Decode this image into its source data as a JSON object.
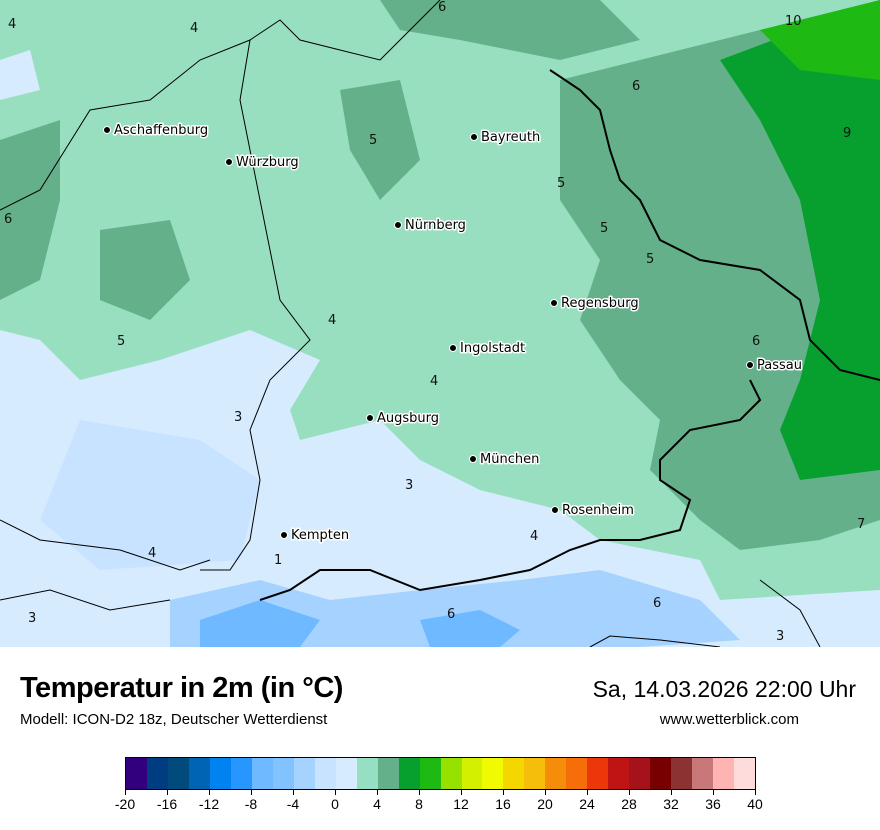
{
  "header": {
    "title": "Temperatur in 2m (in °C)",
    "subtitle": "Modell: ICON-D2 18z, Deutscher Wetterdienst",
    "datetime": "Sa, 14.03.2026 22:00 Uhr",
    "website": "www.wetterblick.com"
  },
  "map": {
    "cities": [
      {
        "name": "Aschaffenburg"
      },
      {
        "name": "Würzburg"
      },
      {
        "name": "Bayreuth"
      },
      {
        "name": "Nürnberg"
      },
      {
        "name": "Regensburg"
      },
      {
        "name": "Ingolstadt"
      },
      {
        "name": "Passau"
      },
      {
        "name": "Augsburg"
      },
      {
        "name": "München"
      },
      {
        "name": "Rosenheim"
      },
      {
        "name": "Kempten"
      }
    ],
    "contour_labels": [
      "4",
      "4",
      "6",
      "10",
      "6",
      "9",
      "5",
      "5",
      "5",
      "6",
      "5",
      "4",
      "6",
      "5",
      "4",
      "3",
      "3",
      "4",
      "1",
      "4",
      "3",
      "6",
      "6",
      "7",
      "3"
    ]
  },
  "legend": {
    "ticks": [
      "-20",
      "-16",
      "-12",
      "-8",
      "-4",
      "0",
      "4",
      "8",
      "12",
      "16",
      "20",
      "24",
      "28",
      "32",
      "36",
      "40"
    ],
    "colors": [
      "#32007e",
      "#003c82",
      "#004a7c",
      "#0064b4",
      "#0082f0",
      "#2896ff",
      "#6eb9ff",
      "#82c3ff",
      "#a5d2ff",
      "#c8e3ff",
      "#d7ebff",
      "#96dfc2",
      "#64b08b",
      "#07a02f",
      "#1fb913",
      "#96e100",
      "#d2f000",
      "#f0fa00",
      "#f5d700",
      "#f5be0a",
      "#f58c0a",
      "#f56e0a",
      "#eb370a",
      "#be1414",
      "#a5121a",
      "#780000",
      "#8c3232",
      "#c87878",
      "#ffb4b4",
      "#ffdcdc"
    ]
  }
}
